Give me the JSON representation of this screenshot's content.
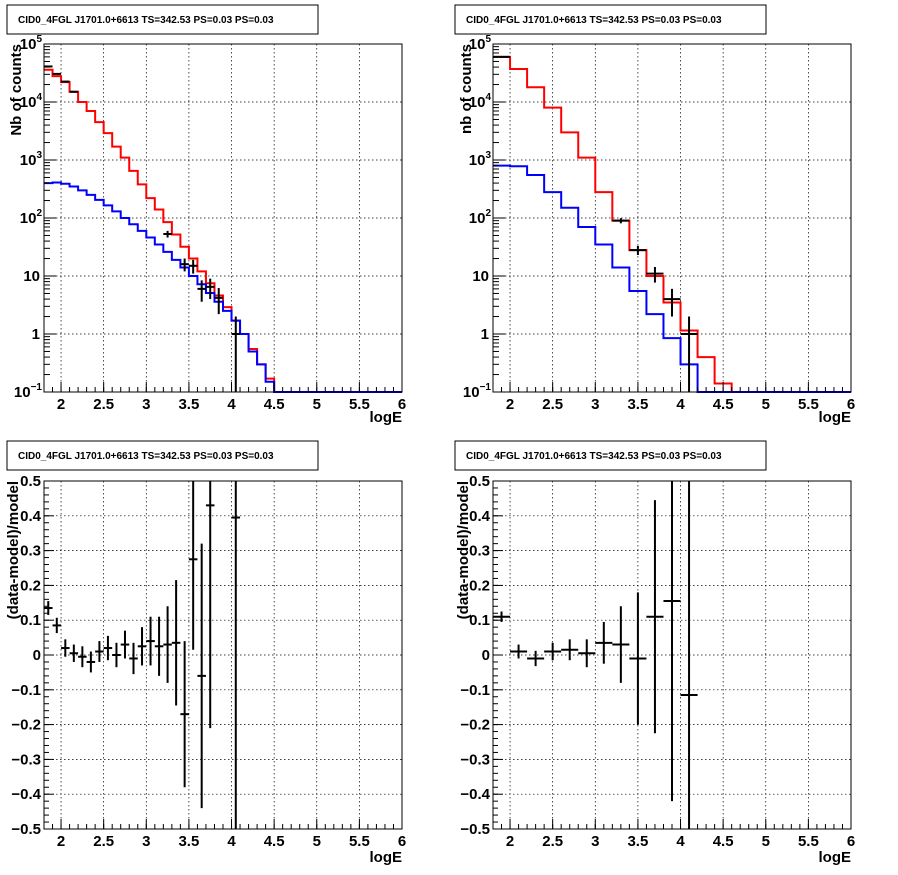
{
  "colors": {
    "data": "#000000",
    "red_model": "#ff0000",
    "blue_model": "#0000ff",
    "background": "#ffffff"
  },
  "chart_data": [
    {
      "id": "spec1",
      "type": "line",
      "title": "CID0_4FGL J1701.0+6613 TS=342.53 PS=0.03 PS=0.03",
      "xlabel": "logE",
      "ylabel": "Nb of counts",
      "ylog": true,
      "grid": true,
      "xlim": [
        1.8,
        6.0
      ],
      "ylim": [
        0.1,
        100000
      ],
      "xticks": [
        2,
        2.5,
        3,
        3.5,
        4,
        4.5,
        5,
        5.5,
        6
      ],
      "xtick_labels": [
        "2",
        "2.5",
        "3",
        "3.5",
        "4",
        "4.5",
        "5",
        "5.5",
        "6"
      ],
      "yticks": [
        {
          "v": 0.1,
          "base": "10",
          "exp": "−1"
        },
        {
          "v": 1,
          "base": "1",
          "exp": ""
        },
        {
          "v": 10,
          "base": "10",
          "exp": ""
        },
        {
          "v": 100,
          "base": "10",
          "exp": "2"
        },
        {
          "v": 1000,
          "base": "10",
          "exp": "3"
        },
        {
          "v": 10000,
          "base": "10",
          "exp": "4"
        },
        {
          "v": 100000,
          "base": "10",
          "exp": "5"
        }
      ],
      "bin_edges": [
        1.8,
        1.9,
        2.0,
        2.1,
        2.2,
        2.3,
        2.4,
        2.5,
        2.6,
        2.7,
        2.8,
        2.9,
        3.0,
        3.1,
        3.2,
        3.3,
        3.4,
        3.5,
        3.6,
        3.7,
        3.8,
        3.9,
        4.0,
        4.1,
        4.2,
        4.3,
        4.4,
        4.5,
        4.6,
        4.7,
        4.8,
        4.9,
        5.0,
        5.1,
        5.2,
        5.3,
        5.4,
        5.5,
        5.6,
        5.7,
        5.8,
        5.9,
        6.0
      ],
      "series": [
        {
          "role": "red_model",
          "values": [
            36000,
            28000,
            22000,
            15000,
            10000,
            7000,
            4500,
            2900,
            1700,
            1100,
            650,
            380,
            220,
            140,
            85,
            52,
            32,
            20,
            12,
            7.5,
            4.6,
            2.9,
            1.7,
            1.0,
            0.55,
            0.3,
            0.17,
            0.1,
            0.1,
            0.1,
            0.1,
            0.1,
            0.1,
            0.1,
            0.1,
            0.1,
            0.1,
            0.1,
            0.1,
            0.1,
            0.1,
            0.1
          ]
        },
        {
          "role": "blue_model",
          "values": [
            400,
            410,
            390,
            350,
            300,
            250,
            205,
            165,
            130,
            100,
            78,
            60,
            46,
            35,
            26,
            19,
            14,
            10,
            7.2,
            5.1,
            3.6,
            2.5,
            1.7,
            1.0,
            0.5,
            0.3,
            0.15,
            0.1,
            0.1,
            0.1,
            0.1,
            0.1,
            0.1,
            0.1,
            0.1,
            0.1,
            0.1,
            0.1,
            0.1,
            0.1,
            0.1,
            0.1
          ]
        },
        {
          "role": "data",
          "points": [
            {
              "x": 1.85,
              "y": 41000,
              "err": 200
            },
            {
              "x": 1.95,
              "y": 30500,
              "err": 175
            },
            {
              "x": 2.05,
              "y": 22500,
              "err": 150
            },
            {
              "x": 2.15,
              "y": 15000,
              "err": 122
            },
            {
              "x": 3.25,
              "y": 53,
              "err": 7
            },
            {
              "x": 3.45,
              "y": 16,
              "err": 4
            },
            {
              "x": 3.55,
              "y": 15,
              "err": 4
            },
            {
              "x": 3.65,
              "y": 6,
              "err": 2.4
            },
            {
              "x": 3.75,
              "y": 6.5,
              "err": 2.5
            },
            {
              "x": 3.85,
              "y": 4.2,
              "err": 2
            },
            {
              "x": 4.05,
              "y": 1,
              "err": 1
            }
          ]
        }
      ]
    },
    {
      "id": "spec2",
      "type": "line",
      "title": "CID0_4FGL J1701.0+6613 TS=342.53 PS=0.03 PS=0.03",
      "xlabel": "logE",
      "ylabel": "nb of counts",
      "ylog": true,
      "grid": true,
      "xlim": [
        1.8,
        6.0
      ],
      "ylim": [
        0.1,
        100000
      ],
      "xticks": [
        2,
        2.5,
        3,
        3.5,
        4,
        4.5,
        5,
        5.5,
        6
      ],
      "xtick_labels": [
        "2",
        "2.5",
        "3",
        "3.5",
        "4",
        "4.5",
        "5",
        "5.5",
        "6"
      ],
      "yticks": [
        {
          "v": 0.1,
          "base": "10",
          "exp": "−1"
        },
        {
          "v": 1,
          "base": "1",
          "exp": ""
        },
        {
          "v": 10,
          "base": "10",
          "exp": ""
        },
        {
          "v": 100,
          "base": "10",
          "exp": "2"
        },
        {
          "v": 1000,
          "base": "10",
          "exp": "3"
        },
        {
          "v": 10000,
          "base": "10",
          "exp": "4"
        },
        {
          "v": 100000,
          "base": "10",
          "exp": "5"
        }
      ],
      "bin_edges": [
        1.8,
        2.0,
        2.2,
        2.4,
        2.6,
        2.8,
        3.0,
        3.2,
        3.4,
        3.6,
        3.8,
        4.0,
        4.2,
        4.4,
        4.6,
        4.8,
        5.0,
        5.2,
        5.4,
        5.6,
        5.8,
        6.0
      ],
      "series": [
        {
          "role": "red_model",
          "values": [
            60000,
            37000,
            18000,
            8000,
            3000,
            1100,
            280,
            90,
            28,
            10,
            3.5,
            1.15,
            0.4,
            0.14,
            0.1,
            0.1,
            0.1,
            0.1,
            0.1,
            0.1,
            0.1
          ]
        },
        {
          "role": "blue_model",
          "values": [
            800,
            780,
            550,
            280,
            150,
            70,
            35,
            14,
            5.5,
            2.2,
            0.85,
            0.3,
            0.1,
            0.1,
            0.1,
            0.1,
            0.1,
            0.1,
            0.1,
            0.1,
            0.1
          ]
        },
        {
          "role": "data",
          "points": [
            {
              "x": 1.9,
              "y": 60000,
              "err": 250
            },
            {
              "x": 3.3,
              "y": 90,
              "err": 9
            },
            {
              "x": 3.5,
              "y": 28,
              "err": 5
            },
            {
              "x": 3.7,
              "y": 11,
              "err": 3.3
            },
            {
              "x": 3.9,
              "y": 4,
              "err": 2
            },
            {
              "x": 4.1,
              "y": 1,
              "err": 1
            }
          ]
        }
      ]
    },
    {
      "id": "res1",
      "type": "scatter",
      "title": "CID0_4FGL J1701.0+6613 TS=342.53 PS=0.03 PS=0.03",
      "xlabel": "logE",
      "ylabel": "(data-model)/model",
      "ylog": false,
      "grid": true,
      "xlim": [
        1.8,
        6.0
      ],
      "ylim": [
        -0.5,
        0.5
      ],
      "xticks": [
        2,
        2.5,
        3,
        3.5,
        4,
        4.5,
        5,
        5.5,
        6
      ],
      "xtick_labels": [
        "2",
        "2.5",
        "3",
        "3.5",
        "4",
        "4.5",
        "5",
        "5.5",
        "6"
      ],
      "yticks": [
        -0.5,
        -0.4,
        -0.3,
        -0.2,
        -0.1,
        0,
        0.1,
        0.2,
        0.3,
        0.4,
        0.5
      ],
      "ytick_labels": [
        "−0.5",
        "−0.4",
        "−0.3",
        "−0.2",
        "−0.1",
        "0",
        "0.1",
        "0.2",
        "0.3",
        "0.4",
        "0.5"
      ],
      "bin_halfwidth": 0.05,
      "series": [
        {
          "role": "data",
          "points": [
            {
              "x": 1.85,
              "y": 0.135,
              "err": 0.02
            },
            {
              "x": 1.95,
              "y": 0.085,
              "err": 0.022
            },
            {
              "x": 2.05,
              "y": 0.02,
              "err": 0.025
            },
            {
              "x": 2.15,
              "y": 0.005,
              "err": 0.025
            },
            {
              "x": 2.25,
              "y": -0.005,
              "err": 0.03
            },
            {
              "x": 2.35,
              "y": -0.02,
              "err": 0.03
            },
            {
              "x": 2.45,
              "y": 0.01,
              "err": 0.03
            },
            {
              "x": 2.55,
              "y": 0.02,
              "err": 0.035
            },
            {
              "x": 2.65,
              "y": 0.0,
              "err": 0.035
            },
            {
              "x": 2.75,
              "y": 0.03,
              "err": 0.04
            },
            {
              "x": 2.85,
              "y": -0.01,
              "err": 0.045
            },
            {
              "x": 2.95,
              "y": 0.025,
              "err": 0.055
            },
            {
              "x": 3.05,
              "y": 0.04,
              "err": 0.07
            },
            {
              "x": 3.15,
              "y": 0.025,
              "err": 0.085
            },
            {
              "x": 3.25,
              "y": 0.03,
              "err": 0.11
            },
            {
              "x": 3.35,
              "y": 0.035,
              "err": 0.18
            },
            {
              "x": 3.45,
              "y": -0.17,
              "err": 0.21
            },
            {
              "x": 3.55,
              "y": 0.275,
              "err": 0.26
            },
            {
              "x": 3.65,
              "y": -0.06,
              "err": 0.38
            },
            {
              "x": 3.75,
              "y": 0.43,
              "err": 0.64
            },
            {
              "x": 4.05,
              "y": 0.395,
              "err": 1.0
            }
          ]
        }
      ]
    },
    {
      "id": "res2",
      "type": "scatter",
      "title": "CID0_4FGL J1701.0+6613 TS=342.53 PS=0.03 PS=0.03",
      "xlabel": "logE",
      "ylabel": "(data-model)/model",
      "ylog": false,
      "grid": true,
      "xlim": [
        1.8,
        6.0
      ],
      "ylim": [
        -0.5,
        0.5
      ],
      "xticks": [
        2,
        2.5,
        3,
        3.5,
        4,
        4.5,
        5,
        5.5,
        6
      ],
      "xtick_labels": [
        "2",
        "2.5",
        "3",
        "3.5",
        "4",
        "4.5",
        "5",
        "5.5",
        "6"
      ],
      "yticks": [
        -0.5,
        -0.4,
        -0.3,
        -0.2,
        -0.1,
        0,
        0.1,
        0.2,
        0.3,
        0.4,
        0.5
      ],
      "ytick_labels": [
        "−0.5",
        "−0.4",
        "−0.3",
        "−0.2",
        "−0.1",
        "0",
        "0.1",
        "0.2",
        "0.3",
        "0.4",
        "0.5"
      ],
      "bin_halfwidth": 0.1,
      "series": [
        {
          "role": "data",
          "points": [
            {
              "x": 1.9,
              "y": 0.11,
              "err": 0.015
            },
            {
              "x": 2.1,
              "y": 0.01,
              "err": 0.02
            },
            {
              "x": 2.3,
              "y": -0.01,
              "err": 0.022
            },
            {
              "x": 2.5,
              "y": 0.01,
              "err": 0.025
            },
            {
              "x": 2.7,
              "y": 0.015,
              "err": 0.03
            },
            {
              "x": 2.9,
              "y": 0.005,
              "err": 0.04
            },
            {
              "x": 3.1,
              "y": 0.035,
              "err": 0.06
            },
            {
              "x": 3.3,
              "y": 0.03,
              "err": 0.11
            },
            {
              "x": 3.5,
              "y": -0.01,
              "err": 0.19
            },
            {
              "x": 3.7,
              "y": 0.11,
              "err": 0.335
            },
            {
              "x": 3.9,
              "y": 0.155,
              "err": 0.575
            },
            {
              "x": 4.1,
              "y": -0.115,
              "err": 1.0
            }
          ]
        }
      ]
    }
  ]
}
